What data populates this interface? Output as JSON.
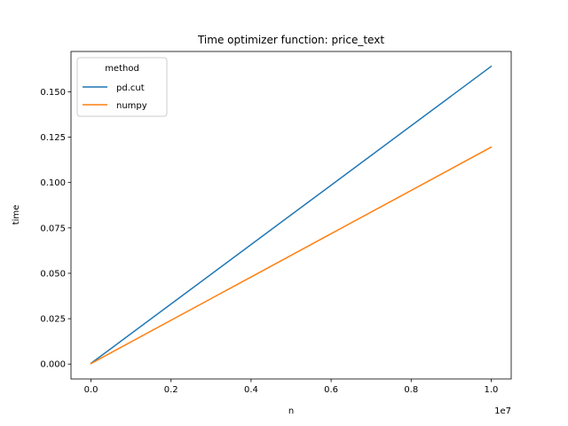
{
  "chart_data": {
    "type": "line",
    "title": "Time optimizer function: price_text",
    "xlabel": "n",
    "ylabel": "time",
    "x_offset_label": "1e7",
    "xlim": [
      -0.05,
      1.05
    ],
    "ylim": [
      -0.0082,
      0.1722
    ],
    "x_ticks": [
      0.0,
      0.2,
      0.4,
      0.6,
      0.8,
      1.0
    ],
    "x_tick_labels": [
      "0.0",
      "0.2",
      "0.4",
      "0.6",
      "0.8",
      "1.0"
    ],
    "y_ticks": [
      0.0,
      0.025,
      0.05,
      0.075,
      0.1,
      0.125,
      0.15
    ],
    "y_tick_labels": [
      "0.000",
      "0.025",
      "0.050",
      "0.075",
      "0.100",
      "0.125",
      "0.150"
    ],
    "grid": false,
    "legend": {
      "title": "method",
      "placement": "top-left"
    },
    "series": [
      {
        "name": "pd.cut",
        "color": "#1f77b4",
        "x": [
          0.0,
          1.0
        ],
        "y": [
          0.0004,
          0.164
        ]
      },
      {
        "name": "numpy",
        "color": "#ff7f0e",
        "x": [
          0.0,
          1.0
        ],
        "y": [
          0.0003,
          0.1195
        ]
      }
    ]
  }
}
